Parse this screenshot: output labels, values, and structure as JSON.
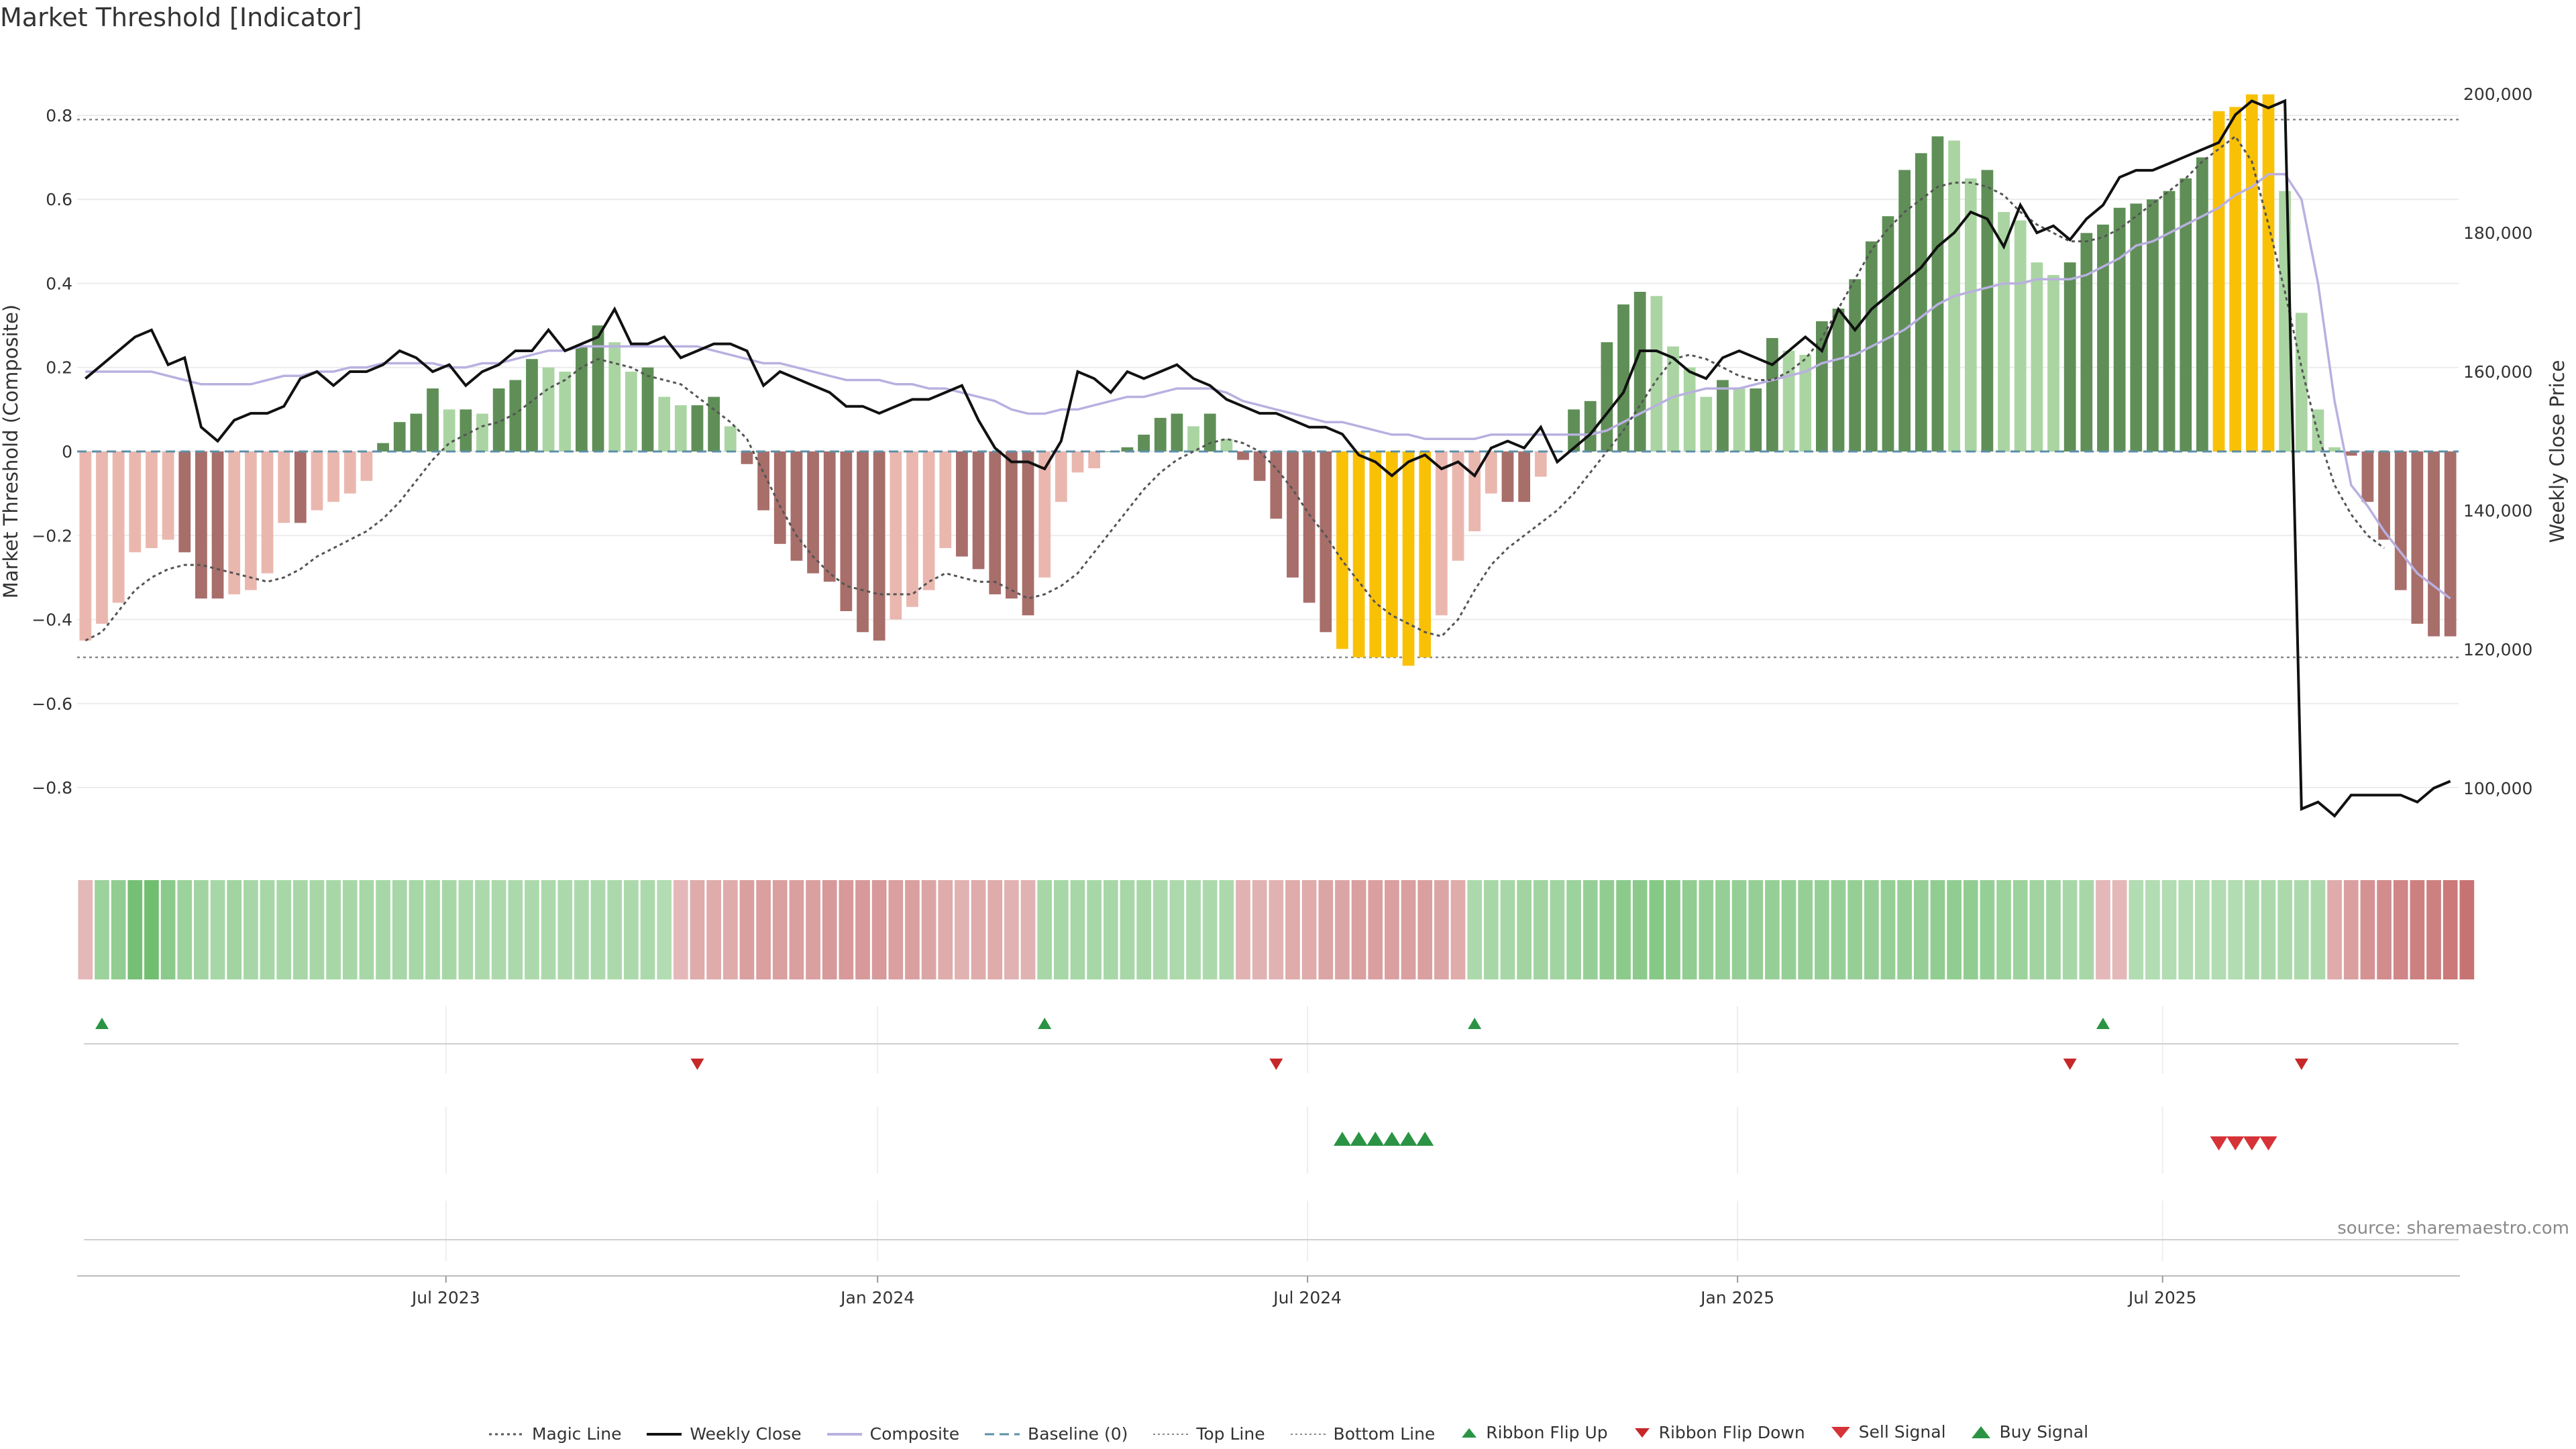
{
  "title": "Market Threshold [Indicator]",
  "source": "source: sharemaestro.com",
  "colors": {
    "pos_strong": "#5f8f57",
    "pos_light": "#aad5a2",
    "neg_strong": "#a86e6a",
    "neg_light": "#eab7af",
    "extreme": "#f9c106",
    "close": "#111111",
    "composite": "#b9b0e0",
    "magic": "#555555",
    "baseline": "#5c8fa8",
    "buy": "#2b9444",
    "sell": "#d63338"
  },
  "legend": [
    {
      "key": "magic",
      "label": "Magic Line"
    },
    {
      "key": "close",
      "label": "Weekly Close"
    },
    {
      "key": "composite",
      "label": "Composite"
    },
    {
      "key": "baseline",
      "label": "Baseline (0)"
    },
    {
      "key": "top",
      "label": "Top Line"
    },
    {
      "key": "bottom",
      "label": "Bottom Line"
    },
    {
      "key": "flipup",
      "label": "Ribbon Flip Up"
    },
    {
      "key": "flipdown",
      "label": "Ribbon Flip Down"
    },
    {
      "key": "sell",
      "label": "Sell Signal"
    },
    {
      "key": "buy",
      "label": "Buy Signal"
    }
  ],
  "chart_data": {
    "type": "bar",
    "title": "Market Threshold [Indicator]",
    "ylabel": "Market Threshold (Composite)",
    "y2label": "Weekly Close Price",
    "ylim": [
      -0.95,
      0.95
    ],
    "y2lim": [
      91000,
      206000
    ],
    "yticks": [
      "0.8",
      "0.6",
      "0.4",
      "0.2",
      "0",
      "−0.2",
      "−0.4",
      "−0.6",
      "−0.8"
    ],
    "ytick_values": [
      0.8,
      0.6,
      0.4,
      0.2,
      0,
      -0.2,
      -0.4,
      -0.6,
      -0.8
    ],
    "y2ticks": [
      "200,000",
      "180,000",
      "160,000",
      "140,000",
      "120,000",
      "100,000"
    ],
    "y2tick_values": [
      200000,
      180000,
      160000,
      140000,
      120000,
      100000
    ],
    "top_line": 0.79,
    "bottom_line": -0.49,
    "baseline": 0,
    "xtick_labels": [
      "Jul 2023",
      "Jan 2024",
      "Jul 2024",
      "Jan 2025",
      "Jul 2025"
    ],
    "xtick_index": [
      21.8,
      47.9,
      73.9,
      99.9,
      125.6
    ],
    "bars": [
      -0.45,
      -0.41,
      -0.36,
      -0.24,
      -0.23,
      -0.21,
      -0.24,
      -0.35,
      -0.35,
      -0.34,
      -0.33,
      -0.29,
      -0.17,
      -0.17,
      -0.14,
      -0.12,
      -0.1,
      -0.07,
      0.02,
      0.07,
      0.09,
      0.15,
      0.1,
      0.1,
      0.09,
      0.15,
      0.17,
      0.22,
      0.2,
      0.19,
      0.25,
      0.3,
      0.26,
      0.19,
      0.2,
      0.13,
      0.11,
      0.11,
      0.13,
      0.06,
      -0.03,
      -0.14,
      -0.22,
      -0.26,
      -0.29,
      -0.31,
      -0.38,
      -0.43,
      -0.45,
      -0.4,
      -0.37,
      -0.33,
      -0.23,
      -0.25,
      -0.28,
      -0.34,
      -0.35,
      -0.39,
      -0.3,
      -0.12,
      -0.05,
      -0.04,
      0.0,
      0.01,
      0.04,
      0.08,
      0.09,
      0.06,
      0.09,
      0.03,
      -0.02,
      -0.07,
      -0.16,
      -0.3,
      -0.36,
      -0.43,
      -0.47,
      -0.49,
      -0.49,
      -0.49,
      -0.51,
      -0.49,
      -0.39,
      -0.26,
      -0.19,
      -0.1,
      -0.12,
      -0.12,
      -0.06,
      0.0,
      0.1,
      0.12,
      0.26,
      0.35,
      0.38,
      0.37,
      0.25,
      0.2,
      0.13,
      0.17,
      0.15,
      0.15,
      0.27,
      0.24,
      0.23,
      0.31,
      0.34,
      0.41,
      0.5,
      0.56,
      0.67,
      0.71,
      0.75,
      0.74,
      0.65,
      0.67,
      0.57,
      0.55,
      0.45,
      0.42,
      0.45,
      0.52,
      0.54,
      0.58,
      0.59,
      0.6,
      0.62,
      0.65,
      0.7,
      0.81,
      0.82,
      0.85,
      0.85,
      0.62,
      0.33,
      0.1,
      0.01,
      -0.01,
      -0.12,
      -0.21,
      -0.33,
      -0.41,
      -0.44,
      -0.44
    ],
    "weekly_close": [
      159000,
      161000,
      163000,
      165000,
      166000,
      161000,
      162000,
      152000,
      150000,
      153000,
      154000,
      154000,
      155000,
      159000,
      160000,
      158000,
      160000,
      160000,
      161000,
      163000,
      162000,
      160000,
      161000,
      158000,
      160000,
      161000,
      163000,
      163000,
      166000,
      163000,
      164000,
      165000,
      169000,
      164000,
      164000,
      165000,
      162000,
      163000,
      164000,
      164000,
      163000,
      158000,
      160000,
      159000,
      158000,
      157000,
      155000,
      155000,
      154000,
      155000,
      156000,
      156000,
      157000,
      158000,
      153000,
      149000,
      147000,
      147000,
      146000,
      150000,
      160000,
      159000,
      157000,
      160000,
      159000,
      160000,
      161000,
      159000,
      158000,
      156000,
      155000,
      154000,
      154000,
      153000,
      152000,
      152000,
      151000,
      148000,
      147000,
      145000,
      147000,
      148000,
      146000,
      147000,
      145000,
      149000,
      150000,
      149000,
      152000,
      147000,
      149000,
      151000,
      154000,
      157000,
      163000,
      163000,
      162000,
      160000,
      159000,
      162000,
      163000,
      162000,
      161000,
      163000,
      165000,
      163000,
      169000,
      166000,
      169000,
      171000,
      173000,
      175000,
      178000,
      180000,
      183000,
      182000,
      178000,
      184000,
      180000,
      181000,
      179000,
      182000,
      184000,
      188000,
      189000,
      189000,
      190000,
      191000,
      192000,
      193000,
      197000,
      199000,
      198000,
      199000,
      97000,
      98000,
      96000,
      99000,
      99000,
      99000,
      99000,
      98000,
      100000,
      101000
    ],
    "composite": [
      0.19,
      0.19,
      0.19,
      0.19,
      0.19,
      0.18,
      0.17,
      0.16,
      0.16,
      0.16,
      0.16,
      0.17,
      0.18,
      0.18,
      0.19,
      0.19,
      0.2,
      0.2,
      0.21,
      0.21,
      0.21,
      0.21,
      0.2,
      0.2,
      0.21,
      0.21,
      0.22,
      0.23,
      0.24,
      0.24,
      0.25,
      0.25,
      0.25,
      0.25,
      0.25,
      0.25,
      0.25,
      0.25,
      0.24,
      0.23,
      0.22,
      0.21,
      0.21,
      0.2,
      0.19,
      0.18,
      0.17,
      0.17,
      0.17,
      0.16,
      0.16,
      0.15,
      0.15,
      0.14,
      0.13,
      0.12,
      0.1,
      0.09,
      0.09,
      0.1,
      0.1,
      0.11,
      0.12,
      0.13,
      0.13,
      0.14,
      0.15,
      0.15,
      0.15,
      0.14,
      0.12,
      0.11,
      0.1,
      0.09,
      0.08,
      0.07,
      0.07,
      0.06,
      0.05,
      0.04,
      0.04,
      0.03,
      0.03,
      0.03,
      0.03,
      0.04,
      0.04,
      0.04,
      0.04,
      0.04,
      0.04,
      0.04,
      0.05,
      0.07,
      0.09,
      0.11,
      0.13,
      0.14,
      0.15,
      0.15,
      0.15,
      0.16,
      0.17,
      0.18,
      0.19,
      0.21,
      0.22,
      0.23,
      0.25,
      0.27,
      0.29,
      0.32,
      0.35,
      0.37,
      0.38,
      0.39,
      0.4,
      0.4,
      0.41,
      0.41,
      0.41,
      0.42,
      0.44,
      0.46,
      0.49,
      0.5,
      0.52,
      0.54,
      0.56,
      0.58,
      0.61,
      0.63,
      0.66,
      0.66,
      0.6,
      0.4,
      0.12,
      -0.08,
      -0.13,
      -0.19,
      -0.24,
      -0.29,
      -0.32,
      -0.35
    ],
    "magic_line": [
      -0.45,
      -0.43,
      -0.38,
      -0.33,
      -0.3,
      -0.28,
      -0.27,
      -0.27,
      -0.28,
      -0.29,
      -0.3,
      -0.31,
      -0.3,
      -0.28,
      -0.25,
      -0.23,
      -0.21,
      -0.19,
      -0.16,
      -0.12,
      -0.07,
      -0.02,
      0.02,
      0.04,
      0.06,
      0.07,
      0.09,
      0.12,
      0.15,
      0.17,
      0.2,
      0.22,
      0.21,
      0.2,
      0.18,
      0.17,
      0.16,
      0.13,
      0.1,
      0.07,
      0.03,
      -0.05,
      -0.13,
      -0.2,
      -0.25,
      -0.29,
      -0.32,
      -0.33,
      -0.34,
      -0.34,
      -0.34,
      -0.31,
      -0.29,
      -0.3,
      -0.31,
      -0.31,
      -0.33,
      -0.35,
      -0.34,
      -0.32,
      -0.29,
      -0.24,
      -0.19,
      -0.14,
      -0.09,
      -0.05,
      -0.02,
      0.0,
      0.02,
      0.03,
      0.02,
      0.0,
      -0.04,
      -0.09,
      -0.15,
      -0.2,
      -0.26,
      -0.31,
      -0.36,
      -0.39,
      -0.41,
      -0.43,
      -0.44,
      -0.4,
      -0.33,
      -0.27,
      -0.23,
      -0.2,
      -0.17,
      -0.14,
      -0.1,
      -0.05,
      0.0,
      0.05,
      0.11,
      0.17,
      0.22,
      0.23,
      0.22,
      0.2,
      0.18,
      0.17,
      0.17,
      0.19,
      0.22,
      0.27,
      0.34,
      0.41,
      0.48,
      0.53,
      0.57,
      0.6,
      0.63,
      0.64,
      0.64,
      0.63,
      0.61,
      0.57,
      0.54,
      0.52,
      0.5,
      0.5,
      0.51,
      0.53,
      0.56,
      0.59,
      0.62,
      0.65,
      0.69,
      0.72,
      0.75,
      0.69,
      0.54,
      0.38,
      0.2,
      0.04,
      -0.08,
      -0.15,
      -0.2,
      -0.23
    ],
    "ribbon": [
      -0.25,
      0.45,
      0.55,
      0.8,
      0.85,
      0.6,
      0.45,
      0.4,
      0.35,
      0.4,
      0.35,
      0.35,
      0.35,
      0.35,
      0.35,
      0.35,
      0.35,
      0.35,
      0.35,
      0.35,
      0.35,
      0.35,
      0.35,
      0.3,
      0.3,
      0.3,
      0.3,
      0.3,
      0.3,
      0.3,
      0.3,
      0.3,
      0.3,
      0.3,
      0.3,
      0.25,
      -0.25,
      -0.35,
      -0.35,
      -0.35,
      -0.45,
      -0.45,
      -0.45,
      -0.45,
      -0.45,
      -0.5,
      -0.5,
      -0.5,
      -0.5,
      -0.45,
      -0.45,
      -0.4,
      -0.35,
      -0.3,
      -0.35,
      -0.35,
      -0.3,
      -0.3,
      0.35,
      0.35,
      0.35,
      0.35,
      0.35,
      0.35,
      0.35,
      0.3,
      0.3,
      0.3,
      0.3,
      0.3,
      -0.3,
      -0.3,
      -0.3,
      -0.35,
      -0.35,
      -0.4,
      -0.4,
      -0.45,
      -0.45,
      -0.45,
      -0.45,
      -0.45,
      -0.4,
      -0.35,
      0.3,
      0.35,
      0.35,
      0.4,
      0.4,
      0.4,
      0.45,
      0.5,
      0.55,
      0.6,
      0.6,
      0.65,
      0.6,
      0.55,
      0.5,
      0.5,
      0.5,
      0.5,
      0.5,
      0.5,
      0.5,
      0.5,
      0.5,
      0.5,
      0.5,
      0.5,
      0.5,
      0.5,
      0.55,
      0.55,
      0.55,
      0.5,
      0.45,
      0.45,
      0.4,
      0.4,
      0.35,
      0.35,
      -0.25,
      -0.25,
      0.25,
      0.25,
      0.25,
      0.25,
      0.25,
      0.25,
      0.25,
      0.3,
      0.3,
      0.3,
      0.3,
      0.3,
      -0.35,
      -0.45,
      -0.55,
      -0.6,
      -0.65,
      -0.7,
      -0.7,
      -0.75,
      -0.8
    ],
    "ribbon_flip_up": [
      1,
      58,
      84,
      122
    ],
    "ribbon_flip_down": [
      37,
      72,
      120,
      134
    ],
    "buy_signals": [
      76,
      77,
      78,
      79,
      80,
      81
    ],
    "sell_signals": [
      129,
      130,
      131,
      132
    ]
  }
}
